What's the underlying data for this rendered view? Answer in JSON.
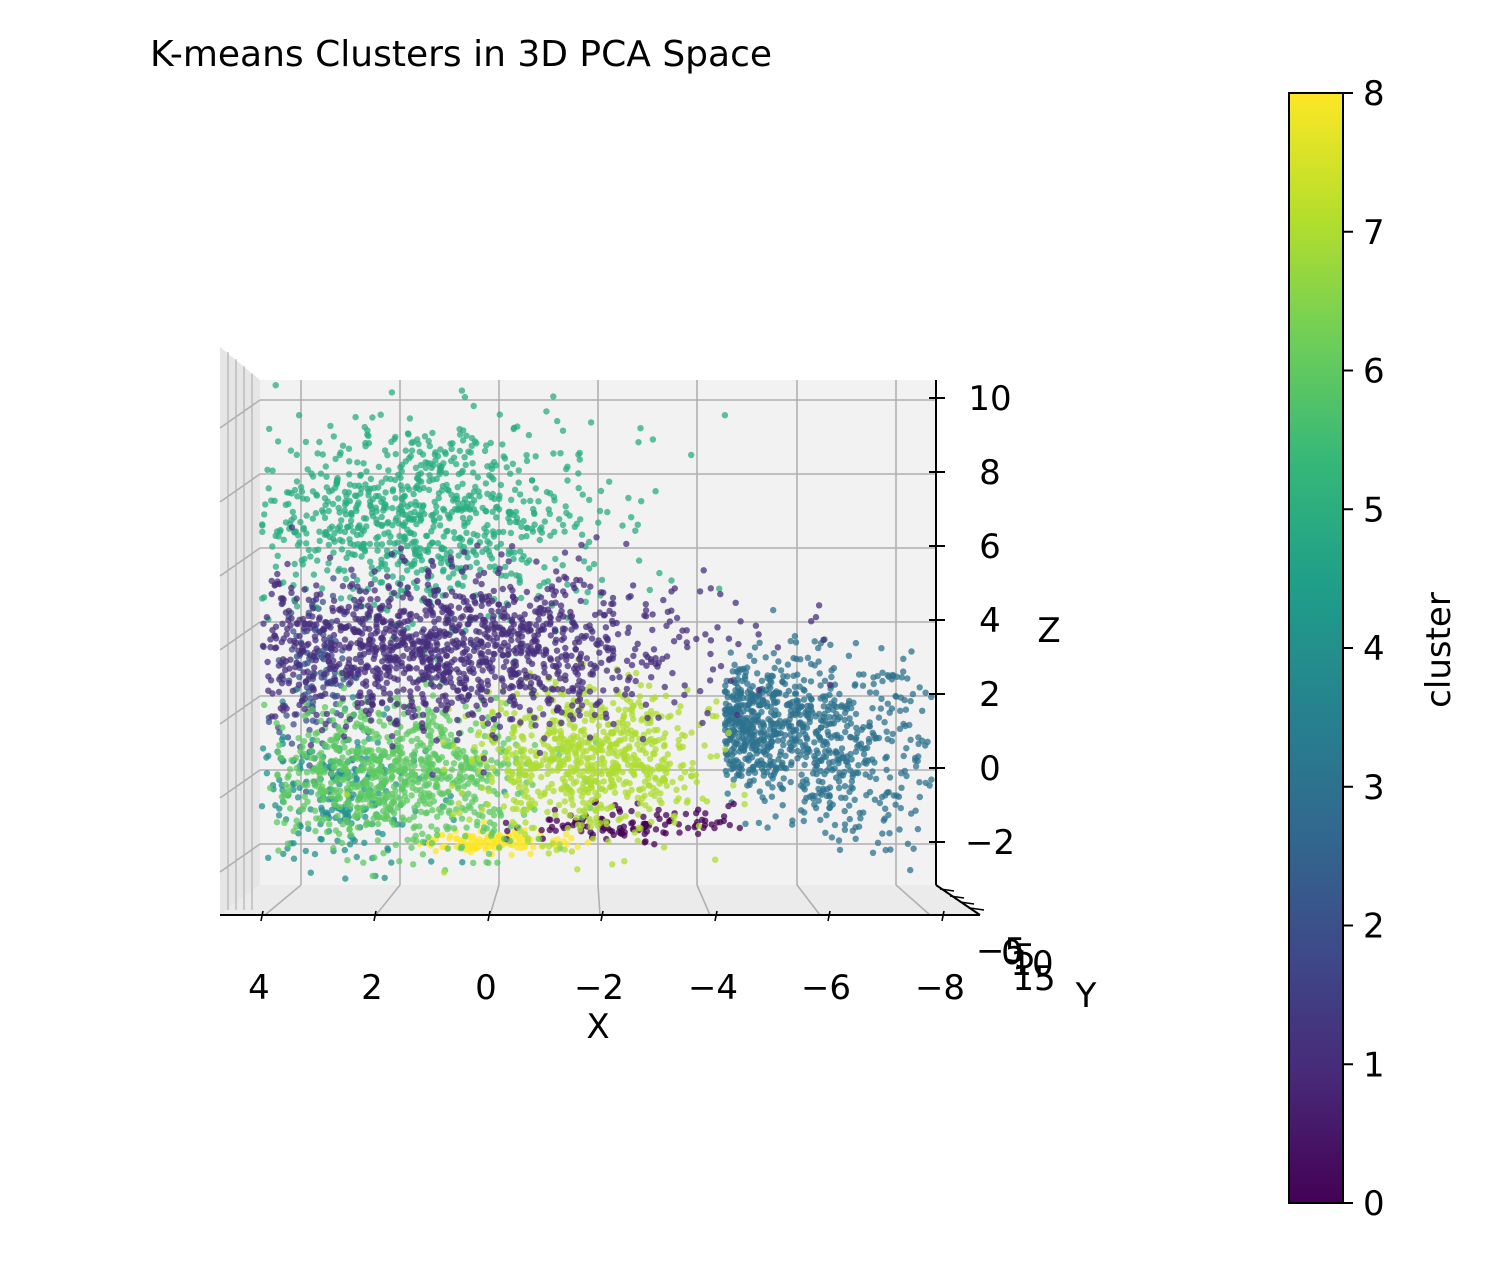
{
  "chart_data": {
    "type": "scatter",
    "title": "K-means Clusters in 3D PCA Space",
    "xlabel": "X",
    "ylabel": "Y",
    "zlabel": "Z",
    "xlim": [
      4.5,
      -8.5
    ],
    "zlim": [
      -3.2,
      11
    ],
    "x_ticks": [
      "4",
      "2",
      "0",
      "−2",
      "−4",
      "−6",
      "−8"
    ],
    "x_tick_values": [
      4,
      2,
      0,
      -2,
      -4,
      -6,
      -8
    ],
    "z_ticks": [
      "−2",
      "0",
      "2",
      "4",
      "6",
      "8",
      "10"
    ],
    "z_tick_values": [
      -2,
      0,
      2,
      4,
      6,
      8,
      10
    ],
    "y_ticks": [
      "−5",
      "0",
      "5",
      "10",
      "15"
    ],
    "view": "front (elev 0°, azim -90°)",
    "grid": true,
    "colorbar": {
      "label": "cluster",
      "min": 0,
      "max": 8,
      "ticks": [
        "0",
        "1",
        "2",
        "3",
        "4",
        "5",
        "6",
        "7",
        "8"
      ],
      "colormap": "viridis"
    },
    "cluster_colors": [
      "#440154",
      "#472f7d",
      "#3b518b",
      "#2c728e",
      "#21918c",
      "#28ae80",
      "#5ec962",
      "#addc30",
      "#fde725"
    ],
    "clusters": [
      {
        "cluster": 0,
        "center": {
          "x": -2.5,
          "z": -1.5
        },
        "spread": {
          "x": 0.9,
          "z": 0.25
        },
        "approx_points": 120
      },
      {
        "cluster": 1,
        "center": {
          "x": 0.8,
          "z": 3.2
        },
        "spread": {
          "x": 2.2,
          "z": 1.0
        },
        "approx_points": 1400
      },
      {
        "cluster": 2,
        "center": {
          "x": 3.0,
          "z": 2.5
        },
        "spread": {
          "x": 0.4,
          "z": 1.2
        },
        "approx_points": 150
      },
      {
        "cluster": 3,
        "center": {
          "x": -4.2,
          "z": 1.2
        },
        "spread": {
          "x": 1.8,
          "z": 1.4
        },
        "approx_points": 900
      },
      {
        "cluster": 4,
        "center": {
          "x": 2.7,
          "z": -0.8
        },
        "spread": {
          "x": 0.8,
          "z": 1.0
        },
        "approx_points": 250
      },
      {
        "cluster": 5,
        "center": {
          "x": 1.2,
          "z": 6.8
        },
        "spread": {
          "x": 1.6,
          "z": 1.3
        },
        "approx_points": 900
      },
      {
        "cluster": 6,
        "center": {
          "x": 1.6,
          "z": -0.2
        },
        "spread": {
          "x": 1.2,
          "z": 1.0
        },
        "approx_points": 800
      },
      {
        "cluster": 7,
        "center": {
          "x": -1.8,
          "z": 0.2
        },
        "spread": {
          "x": 1.0,
          "z": 1.0
        },
        "approx_points": 700
      },
      {
        "cluster": 8,
        "center": {
          "x": -0.2,
          "z": -2.0
        },
        "spread": {
          "x": 0.7,
          "z": 0.15
        },
        "approx_points": 120
      }
    ]
  }
}
